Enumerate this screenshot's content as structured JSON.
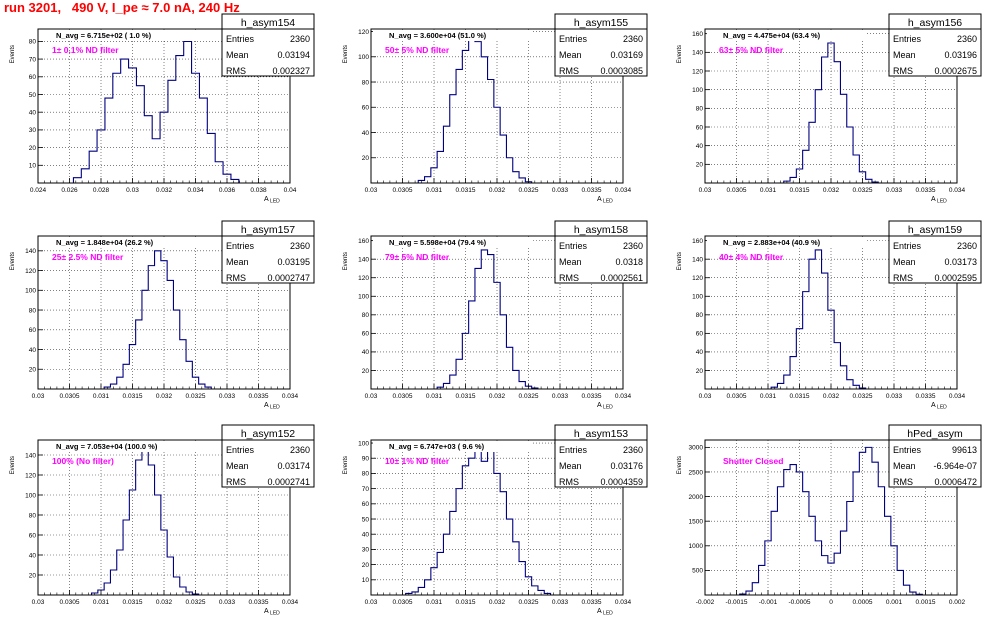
{
  "header": {
    "title": "run 3201,   490 V, I_pe ≈ 7.0 nA, 240 Hz"
  },
  "colors": {
    "histogram": "#000080",
    "annotation": "#ff00ff",
    "title": "#ff0000",
    "grid": "#000000"
  },
  "chart_data": [
    {
      "type": "bar",
      "name": "h_asym154",
      "navg": "N_avg = 6.715e+02 ( 1.0 %)",
      "annotation": "1± 0.1% ND filter",
      "stats": [
        [
          "Entries",
          "2360"
        ],
        [
          "Mean",
          "0.03194"
        ],
        [
          "RMS",
          "0.002327"
        ]
      ],
      "xlabel": "A",
      "xlabel_sub": "LED",
      "ylabel": "Events",
      "xlim": [
        0.024,
        0.04
      ],
      "ylim": [
        0,
        87
      ],
      "xticks": [
        0.024,
        0.026,
        0.028,
        0.03,
        0.032,
        0.034,
        0.036,
        0.038,
        0.04
      ],
      "xtick_labels": [
        "0.024",
        "0.026",
        "0.028",
        "0.03",
        "0.032",
        "0.034",
        "0.036",
        "0.038",
        "0.04"
      ],
      "yticks": [
        10,
        20,
        30,
        40,
        50,
        60,
        70,
        80
      ],
      "grid": true,
      "x": [
        0.0265,
        0.027,
        0.0275,
        0.028,
        0.0285,
        0.029,
        0.0295,
        0.03,
        0.0305,
        0.031,
        0.0315,
        0.032,
        0.0325,
        0.033,
        0.0335,
        0.034,
        0.0345,
        0.035,
        0.0355,
        0.036,
        0.0365
      ],
      "values": [
        3,
        8,
        18,
        30,
        48,
        62,
        70,
        65,
        55,
        38,
        25,
        40,
        58,
        72,
        80,
        62,
        48,
        28,
        12,
        5,
        2
      ]
    },
    {
      "type": "bar",
      "name": "h_asym155",
      "navg": "N_avg = 3.600e+04 (51.0 %)",
      "annotation": "50± 5% ND filter",
      "stats": [
        [
          "Entries",
          "2360"
        ],
        [
          "Mean",
          "0.03169"
        ],
        [
          "RMS",
          "0.0003085"
        ]
      ],
      "xlabel": "A",
      "xlabel_sub": "LED",
      "ylabel": "Events",
      "xlim": [
        0.03,
        0.034
      ],
      "ylim": [
        0,
        122
      ],
      "xticks": [
        0.03,
        0.0305,
        0.031,
        0.0315,
        0.032,
        0.0325,
        0.033,
        0.0335,
        0.034
      ],
      "xtick_labels": [
        "0.03",
        "0.0305",
        "0.031",
        "0.0315",
        "0.032",
        "0.0325",
        "0.033",
        "0.0335",
        "0.034"
      ],
      "yticks": [
        20,
        40,
        60,
        80,
        100,
        120
      ],
      "grid": true,
      "x": [
        0.0308,
        0.0309,
        0.031,
        0.0311,
        0.0312,
        0.0313,
        0.0314,
        0.0315,
        0.0316,
        0.0317,
        0.0318,
        0.0319,
        0.032,
        0.0321,
        0.0322,
        0.0323,
        0.0324,
        0.0325
      ],
      "values": [
        2,
        5,
        12,
        25,
        45,
        70,
        90,
        105,
        115,
        112,
        100,
        82,
        60,
        38,
        20,
        9,
        4,
        1
      ]
    },
    {
      "type": "bar",
      "name": "h_asym156",
      "navg": "N_avg = 4.475e+04 (63.4 %)",
      "annotation": "63± 5% ND filter",
      "stats": [
        [
          "Entries",
          "2360"
        ],
        [
          "Mean",
          "0.03196"
        ],
        [
          "RMS",
          "0.0002675"
        ]
      ],
      "xlabel": "A",
      "xlabel_sub": "LED",
      "ylabel": "Events",
      "xlim": [
        0.03,
        0.034
      ],
      "ylim": [
        0,
        165
      ],
      "xticks": [
        0.03,
        0.0305,
        0.031,
        0.0315,
        0.032,
        0.0325,
        0.033,
        0.0335,
        0.034
      ],
      "xtick_labels": [
        "0.03",
        "0.0305",
        "0.031",
        "0.0315",
        "0.032",
        "0.0325",
        "0.033",
        "0.0335",
        "0.034"
      ],
      "yticks": [
        20,
        40,
        60,
        80,
        100,
        120,
        140,
        160
      ],
      "grid": true,
      "x": [
        0.0313,
        0.0314,
        0.0315,
        0.0316,
        0.0317,
        0.0318,
        0.0319,
        0.032,
        0.0321,
        0.0322,
        0.0323,
        0.0324,
        0.0325,
        0.0326,
        0.0327
      ],
      "values": [
        2,
        6,
        15,
        35,
        65,
        100,
        135,
        150,
        130,
        95,
        60,
        30,
        12,
        4,
        1
      ]
    },
    {
      "type": "bar",
      "name": "h_asym157",
      "navg": "N_avg = 1.848e+04 (26.2 %)",
      "annotation": "25± 2.5% ND filter",
      "stats": [
        [
          "Entries",
          "2360"
        ],
        [
          "Mean",
          "0.03195"
        ],
        [
          "RMS",
          "0.0002747"
        ]
      ],
      "xlabel": "A",
      "xlabel_sub": "LED",
      "ylabel": "Events",
      "xlim": [
        0.03,
        0.034
      ],
      "ylim": [
        0,
        155
      ],
      "xticks": [
        0.03,
        0.0305,
        0.031,
        0.0315,
        0.032,
        0.0325,
        0.033,
        0.0335,
        0.034
      ],
      "xtick_labels": [
        "0.03",
        "0.0305",
        "0.031",
        "0.0315",
        "0.032",
        "0.0325",
        "0.033",
        "0.0335",
        "0.034"
      ],
      "yticks": [
        20,
        40,
        60,
        80,
        100,
        120,
        140
      ],
      "grid": true,
      "x": [
        0.0311,
        0.0312,
        0.0313,
        0.0314,
        0.0315,
        0.0316,
        0.0317,
        0.0318,
        0.0319,
        0.032,
        0.0321,
        0.0322,
        0.0323,
        0.0324,
        0.0325,
        0.0326,
        0.0327
      ],
      "values": [
        2,
        5,
        12,
        25,
        45,
        70,
        100,
        125,
        140,
        130,
        110,
        80,
        50,
        28,
        12,
        5,
        2
      ]
    },
    {
      "type": "bar",
      "name": "h_asym158",
      "navg": "N_avg = 5.598e+04 (79.4 %)",
      "annotation": "79± 5% ND filter",
      "stats": [
        [
          "Entries",
          "2360"
        ],
        [
          "Mean",
          "0.0318"
        ],
        [
          "RMS",
          "0.0002561"
        ]
      ],
      "xlabel": "A",
      "xlabel_sub": "LED",
      "ylabel": "Events",
      "xlim": [
        0.03,
        0.034
      ],
      "ylim": [
        0,
        165
      ],
      "xticks": [
        0.03,
        0.0305,
        0.031,
        0.0315,
        0.032,
        0.0325,
        0.033,
        0.0335,
        0.034
      ],
      "xtick_labels": [
        "0.03",
        "0.0305",
        "0.031",
        "0.0315",
        "0.032",
        "0.0325",
        "0.033",
        "0.0335",
        "0.034"
      ],
      "yticks": [
        20,
        40,
        60,
        80,
        100,
        120,
        140,
        160
      ],
      "grid": true,
      "x": [
        0.0311,
        0.0312,
        0.0313,
        0.0314,
        0.0315,
        0.0316,
        0.0317,
        0.0318,
        0.0319,
        0.032,
        0.0321,
        0.0322,
        0.0323,
        0.0324,
        0.0325,
        0.0326
      ],
      "values": [
        2,
        6,
        15,
        32,
        60,
        95,
        130,
        150,
        145,
        115,
        80,
        45,
        20,
        8,
        3,
        1
      ]
    },
    {
      "type": "bar",
      "name": "h_asym159",
      "navg": "N_avg = 2.883e+04 (40.9 %)",
      "annotation": "40± 4% ND filter",
      "stats": [
        [
          "Entries",
          "2360"
        ],
        [
          "Mean",
          "0.03173"
        ],
        [
          "RMS",
          "0.0002595"
        ]
      ],
      "xlabel": "A",
      "xlabel_sub": "LED",
      "ylabel": "Events",
      "xlim": [
        0.03,
        0.034
      ],
      "ylim": [
        0,
        165
      ],
      "xticks": [
        0.03,
        0.0305,
        0.031,
        0.0315,
        0.032,
        0.0325,
        0.033,
        0.0335,
        0.034
      ],
      "xtick_labels": [
        "0.03",
        "0.0305",
        "0.031",
        "0.0315",
        "0.032",
        "0.0325",
        "0.033",
        "0.0335",
        "0.034"
      ],
      "yticks": [
        20,
        40,
        60,
        80,
        100,
        120,
        140,
        160
      ],
      "grid": true,
      "x": [
        0.0311,
        0.0312,
        0.0313,
        0.0314,
        0.0315,
        0.0316,
        0.0317,
        0.0318,
        0.0319,
        0.032,
        0.0321,
        0.0322,
        0.0323,
        0.0324,
        0.0325
      ],
      "values": [
        2,
        6,
        15,
        35,
        65,
        105,
        140,
        150,
        125,
        85,
        50,
        25,
        10,
        4,
        1
      ]
    },
    {
      "type": "bar",
      "name": "h_asym152",
      "navg": "N_avg = 7.053e+04 (100.0 %)",
      "annotation": "100% (No filter)",
      "stats": [
        [
          "Entries",
          "2360"
        ],
        [
          "Mean",
          "0.03174"
        ],
        [
          "RMS",
          "0.0002741"
        ]
      ],
      "xlabel": "A",
      "xlabel_sub": "LED",
      "ylabel": "Events",
      "xlim": [
        0.03,
        0.034
      ],
      "ylim": [
        0,
        155
      ],
      "xticks": [
        0.03,
        0.0305,
        0.031,
        0.0315,
        0.032,
        0.0325,
        0.033,
        0.0335,
        0.034
      ],
      "xtick_labels": [
        "0.03",
        "0.0305",
        "0.031",
        "0.0315",
        "0.032",
        "0.0325",
        "0.033",
        "0.0335",
        "0.034"
      ],
      "yticks": [
        20,
        40,
        60,
        80,
        100,
        120,
        140
      ],
      "grid": true,
      "x": [
        0.0309,
        0.031,
        0.0311,
        0.0312,
        0.0313,
        0.0314,
        0.0315,
        0.0316,
        0.0317,
        0.0318,
        0.0319,
        0.032,
        0.0321,
        0.0322,
        0.0323,
        0.0324,
        0.0325
      ],
      "values": [
        2,
        5,
        12,
        25,
        45,
        75,
        105,
        135,
        145,
        130,
        100,
        65,
        38,
        18,
        8,
        3,
        1
      ]
    },
    {
      "type": "bar",
      "name": "h_asym153",
      "navg": "N_avg = 6.747e+03 ( 9.6 %)",
      "annotation": "10± 1% ND filter",
      "stats": [
        [
          "Entries",
          "2360"
        ],
        [
          "Mean",
          "0.03176"
        ],
        [
          "RMS",
          "0.0004359"
        ]
      ],
      "xlabel": "A",
      "xlabel_sub": "LED",
      "ylabel": "Events",
      "xlim": [
        0.03,
        0.034
      ],
      "ylim": [
        0,
        102
      ],
      "xticks": [
        0.03,
        0.0305,
        0.031,
        0.0315,
        0.032,
        0.0325,
        0.033,
        0.0335,
        0.034
      ],
      "xtick_labels": [
        "0.03",
        "0.0305",
        "0.031",
        "0.0315",
        "0.032",
        "0.0325",
        "0.033",
        "0.0335",
        "0.034"
      ],
      "yticks": [
        10,
        20,
        30,
        40,
        50,
        60,
        70,
        80,
        90,
        100
      ],
      "grid": true,
      "x": [
        0.0306,
        0.0307,
        0.0308,
        0.0309,
        0.031,
        0.0311,
        0.0312,
        0.0313,
        0.0314,
        0.0315,
        0.0316,
        0.0317,
        0.0318,
        0.0319,
        0.032,
        0.0321,
        0.0322,
        0.0323,
        0.0324,
        0.0325,
        0.0326,
        0.0327,
        0.0328
      ],
      "values": [
        1,
        2,
        5,
        10,
        18,
        28,
        40,
        55,
        70,
        85,
        90,
        95,
        88,
        98,
        80,
        68,
        50,
        35,
        22,
        12,
        6,
        3,
        1
      ]
    },
    {
      "type": "bar",
      "name": "hPed_asym",
      "navg": "",
      "annotation": "Shutter Closed",
      "stats": [
        [
          "Entries",
          "99613"
        ],
        [
          "Mean",
          "-6.964e-07"
        ],
        [
          "RMS",
          "0.0006472"
        ]
      ],
      "xlabel": "",
      "xlabel_sub": "",
      "ylabel": "Events",
      "xlim": [
        -0.002,
        0.002
      ],
      "ylim": [
        0,
        3150
      ],
      "xticks": [
        -0.002,
        -0.0015,
        -0.001,
        -0.0005,
        0,
        0.0005,
        0.001,
        0.0015,
        0.002
      ],
      "xtick_labels": [
        "-0.002",
        "-0.0015",
        "-0.001",
        "-0.0005",
        "0",
        "0.0005",
        "0.001",
        "0.0015",
        "0.002"
      ],
      "yticks": [
        500,
        1000,
        1500,
        2000,
        2500,
        3000
      ],
      "grid": true,
      "x": [
        -0.0014,
        -0.0013,
        -0.0012,
        -0.0011,
        -0.001,
        -0.0009,
        -0.0008,
        -0.0007,
        -0.0006,
        -0.0005,
        -0.0004,
        -0.0003,
        -0.0002,
        -0.0001,
        0.0,
        0.0001,
        0.0002,
        0.0003,
        0.0004,
        0.0005,
        0.0006,
        0.0007,
        0.0008,
        0.0009,
        0.001,
        0.0011,
        0.0012,
        0.0013,
        0.0014
      ],
      "values": [
        20,
        80,
        250,
        600,
        1100,
        1700,
        2200,
        2550,
        2650,
        2500,
        2100,
        1600,
        1100,
        800,
        650,
        850,
        1300,
        1900,
        2500,
        2900,
        3000,
        2700,
        2200,
        1600,
        1000,
        500,
        200,
        60,
        15
      ]
    }
  ]
}
